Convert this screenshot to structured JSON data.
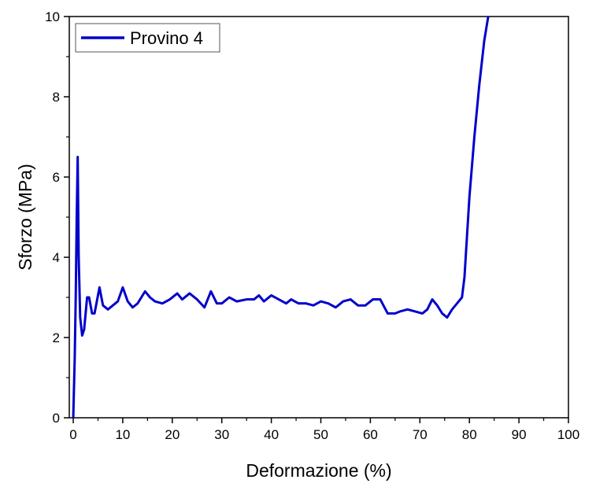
{
  "chart_data": {
    "type": "line",
    "x_label": "Deformazione (%)",
    "y_label": "Sforzo (MPa)",
    "x": [
      0,
      0.3,
      0.5,
      0.7,
      0.9,
      1.1,
      1.4,
      1.8,
      2.2,
      2.8,
      3.2,
      3.8,
      4.3,
      5.3,
      6,
      7,
      8,
      9,
      10,
      11,
      12,
      13,
      14.5,
      15.5,
      16.5,
      18,
      19.5,
      21,
      22,
      23.5,
      25,
      26.5,
      27.8,
      29,
      30,
      31.5,
      33,
      35,
      36.5,
      37.5,
      38.5,
      40,
      41.5,
      43,
      44,
      45.5,
      47,
      48.5,
      50,
      51.5,
      53,
      54.5,
      56,
      57.5,
      59,
      60.5,
      62,
      63.5,
      65,
      66,
      67.5,
      69,
      70.5,
      71.5,
      72.5,
      73.5,
      74.5,
      75.5,
      76.5,
      77.5,
      78.5,
      79,
      79.5,
      80,
      81,
      82,
      83,
      83.8
    ],
    "series": [
      {
        "name": "Provino 4",
        "color": "#0000cc",
        "values": [
          0,
          1.5,
          3,
          5,
          6.5,
          4,
          2.5,
          2.05,
          2.2,
          3.0,
          3.0,
          2.6,
          2.6,
          3.25,
          2.8,
          2.7,
          2.8,
          2.9,
          3.25,
          2.9,
          2.75,
          2.85,
          3.15,
          3.0,
          2.9,
          2.85,
          2.95,
          3.1,
          2.95,
          3.1,
          2.95,
          2.75,
          3.15,
          2.85,
          2.85,
          3.0,
          2.9,
          2.95,
          2.95,
          3.05,
          2.9,
          3.05,
          2.95,
          2.85,
          2.95,
          2.85,
          2.85,
          2.8,
          2.9,
          2.85,
          2.75,
          2.9,
          2.95,
          2.8,
          2.8,
          2.95,
          2.95,
          2.6,
          2.6,
          2.65,
          2.7,
          2.65,
          2.6,
          2.7,
          2.95,
          2.8,
          2.6,
          2.5,
          2.7,
          2.85,
          3.0,
          3.5,
          4.5,
          5.5,
          7,
          8.3,
          9.4,
          10
        ]
      }
    ],
    "xlim": [
      -0.8,
      100
    ],
    "ylim": [
      0,
      10
    ],
    "xticks": [
      0,
      10,
      20,
      30,
      40,
      50,
      60,
      70,
      80,
      90,
      100
    ],
    "xminorticks": [
      5,
      15,
      25,
      35,
      45,
      55,
      65,
      75,
      85,
      95
    ],
    "yticks": [
      0,
      2,
      4,
      6,
      8,
      10
    ],
    "yminorticks": [
      1,
      3,
      5,
      7,
      9
    ],
    "legend": "upper left",
    "grid": false
  }
}
